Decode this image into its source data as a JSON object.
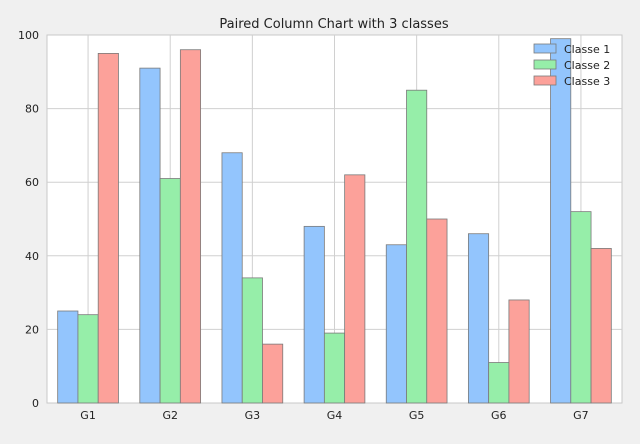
{
  "chart_data": {
    "type": "bar",
    "title": "Paired Column Chart with 3 classes",
    "xlabel": "",
    "ylabel": "",
    "categories": [
      "G1",
      "G2",
      "G3",
      "G4",
      "G5",
      "G6",
      "G7"
    ],
    "ylim": [
      0,
      100
    ],
    "yticks": [
      0,
      20,
      40,
      60,
      80,
      100
    ],
    "grid": true,
    "legend_position": "top-right",
    "series": [
      {
        "name": "Classe 1",
        "color": "#93c5fd",
        "values": [
          25,
          91,
          68,
          48,
          43,
          46,
          99
        ]
      },
      {
        "name": "Classe 2",
        "color": "#96eea9",
        "values": [
          24,
          61,
          34,
          19,
          85,
          11,
          52
        ]
      },
      {
        "name": "Classe 3",
        "color": "#fca19a",
        "values": [
          95,
          96,
          16,
          62,
          50,
          28,
          42
        ]
      }
    ]
  }
}
